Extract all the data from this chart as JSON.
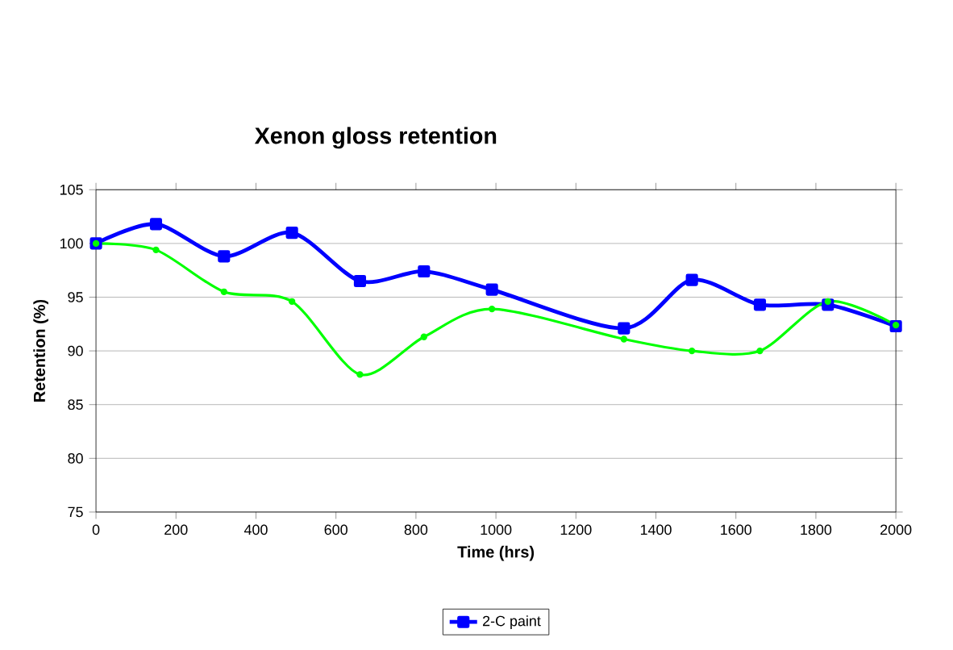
{
  "chart_data": {
    "type": "line",
    "title": "Xenon gloss retention",
    "xlabel": "Time (hrs)",
    "ylabel": "Retention (%)",
    "x": [
      0,
      150,
      320,
      490,
      660,
      820,
      990,
      1320,
      1490,
      1660,
      1830,
      2000
    ],
    "series": [
      {
        "name": "2-C paint",
        "color": "#0000ff",
        "marker": "square",
        "values": [
          100,
          101.8,
          98.8,
          101,
          96.5,
          97.4,
          95.7,
          92.1,
          96.6,
          94.3,
          94.3,
          92.3
        ]
      },
      {
        "color": "#00ff00",
        "marker": "circle",
        "values": [
          100,
          99.4,
          95.5,
          94.6,
          87.8,
          91.3,
          93.9,
          91.1,
          90.0,
          90.0,
          94.6,
          92.4
        ]
      }
    ],
    "xlim": [
      0,
      2000
    ],
    "xticks": [
      0,
      200,
      400,
      600,
      800,
      1000,
      1200,
      1400,
      1600,
      1800,
      2000
    ],
    "ylim": [
      75,
      105
    ],
    "yticks": [
      75,
      80,
      85,
      90,
      95,
      100,
      105
    ],
    "grid": "y",
    "legend": "bottom",
    "line_style": "solid"
  }
}
